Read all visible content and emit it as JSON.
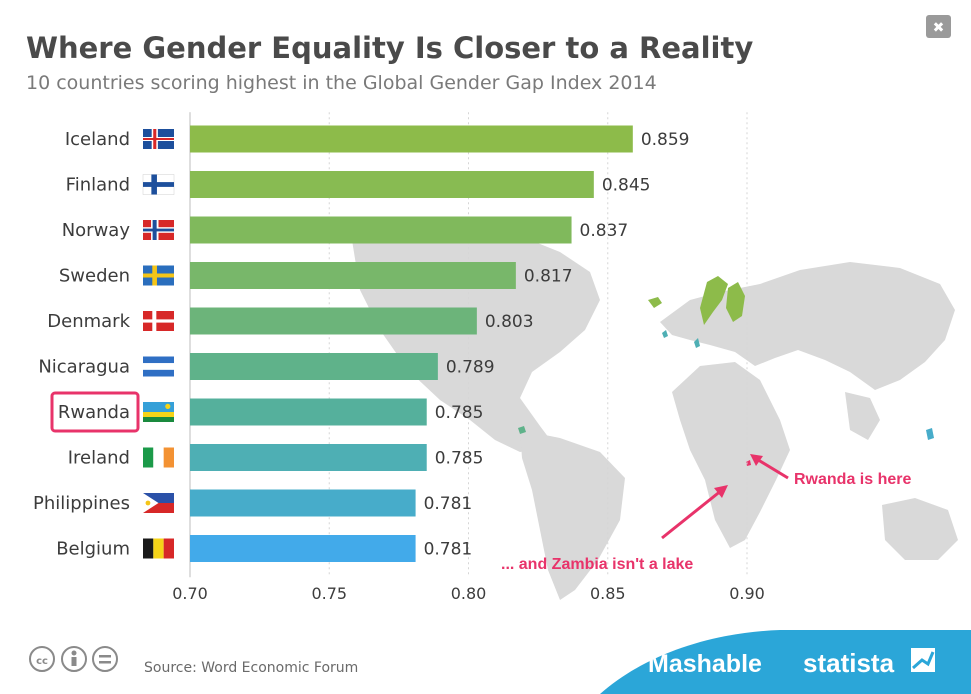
{
  "header": {
    "title": "Where Gender Equality Is Closer to a Reality",
    "subtitle": "10 countries scoring highest in the Global Gender Gap Index 2014"
  },
  "close_label": "✖",
  "chart_data": {
    "type": "bar",
    "orientation": "horizontal",
    "title": "Where Gender Equality Is Closer to a Reality",
    "subtitle": "10 countries scoring highest in the Global Gender Gap Index 2014",
    "categories": [
      "Iceland",
      "Finland",
      "Norway",
      "Sweden",
      "Denmark",
      "Nicaragua",
      "Rwanda",
      "Ireland",
      "Philippines",
      "Belgium"
    ],
    "values": [
      0.859,
      0.845,
      0.837,
      0.817,
      0.803,
      0.789,
      0.785,
      0.785,
      0.781,
      0.781
    ],
    "value_labels": [
      "0.859",
      "0.845",
      "0.837",
      "0.817",
      "0.803",
      "0.789",
      "0.785",
      "0.785",
      "0.781",
      "0.781"
    ],
    "bar_colors": [
      "#8dbb4a",
      "#88bb52",
      "#80b95c",
      "#78b76a",
      "#6cb47a",
      "#5fb28a",
      "#55b09c",
      "#4eafb4",
      "#47acca",
      "#42aaea"
    ],
    "xlim": [
      0.7,
      0.9
    ],
    "xticks": [
      0.7,
      0.75,
      0.8,
      0.85,
      0.9
    ],
    "xtick_labels": [
      "0.70",
      "0.75",
      "0.80",
      "0.85",
      "0.90"
    ],
    "xlabel": "",
    "ylabel": "",
    "highlighted_category": "Rwanda",
    "highlight_color": "#e8336a",
    "annotations": [
      "Rwanda is here",
      "... and Zambia isn't a lake"
    ]
  },
  "flags": [
    {
      "country": "Iceland",
      "icon": "iceland-flag-icon"
    },
    {
      "country": "Finland",
      "icon": "finland-flag-icon"
    },
    {
      "country": "Norway",
      "icon": "norway-flag-icon"
    },
    {
      "country": "Sweden",
      "icon": "sweden-flag-icon"
    },
    {
      "country": "Denmark",
      "icon": "denmark-flag-icon"
    },
    {
      "country": "Nicaragua",
      "icon": "nicaragua-flag-icon"
    },
    {
      "country": "Rwanda",
      "icon": "rwanda-flag-icon"
    },
    {
      "country": "Ireland",
      "icon": "ireland-flag-icon"
    },
    {
      "country": "Philippines",
      "icon": "philippines-flag-icon"
    },
    {
      "country": "Belgium",
      "icon": "belgium-flag-icon"
    }
  ],
  "footer": {
    "source": "Source: Word Economic Forum",
    "brand_left": "Mashable",
    "brand_right": "statista",
    "license_icons": [
      "cc-icon",
      "attribution-icon",
      "no-derivatives-icon"
    ],
    "banner_color": "#2ba6d8"
  }
}
